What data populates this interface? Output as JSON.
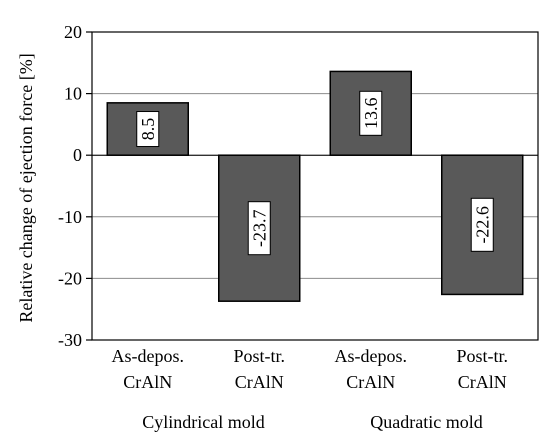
{
  "chart_data": {
    "type": "bar",
    "ylabel": "Relative change of ejection force [%]",
    "ylim": [
      -30,
      20
    ],
    "yticks": [
      20,
      10,
      0,
      -10,
      -20,
      -30
    ],
    "grid": true,
    "categories": [
      "As-depos.\nCrAlN",
      "Post-tr.\nCrAlN",
      "As-depos.\nCrAlN",
      "Post-tr.\nCrAlN"
    ],
    "category_lines": [
      [
        "As-depos.",
        "CrAlN"
      ],
      [
        "Post-tr.",
        "CrAlN"
      ],
      [
        "As-depos.",
        "CrAlN"
      ],
      [
        "Post-tr.",
        "CrAlN"
      ]
    ],
    "groups": [
      {
        "label": "Cylindrical mold",
        "categories": [
          0,
          1
        ]
      },
      {
        "label": "Quadratic mold",
        "categories": [
          2,
          3
        ]
      }
    ],
    "values": [
      8.5,
      -23.7,
      13.6,
      -22.6
    ],
    "data_labels": [
      "8.5",
      "-23.7",
      "13.6",
      "-22.6"
    ],
    "bar_color": "#595959",
    "grid_color": "#8c8c8c"
  }
}
